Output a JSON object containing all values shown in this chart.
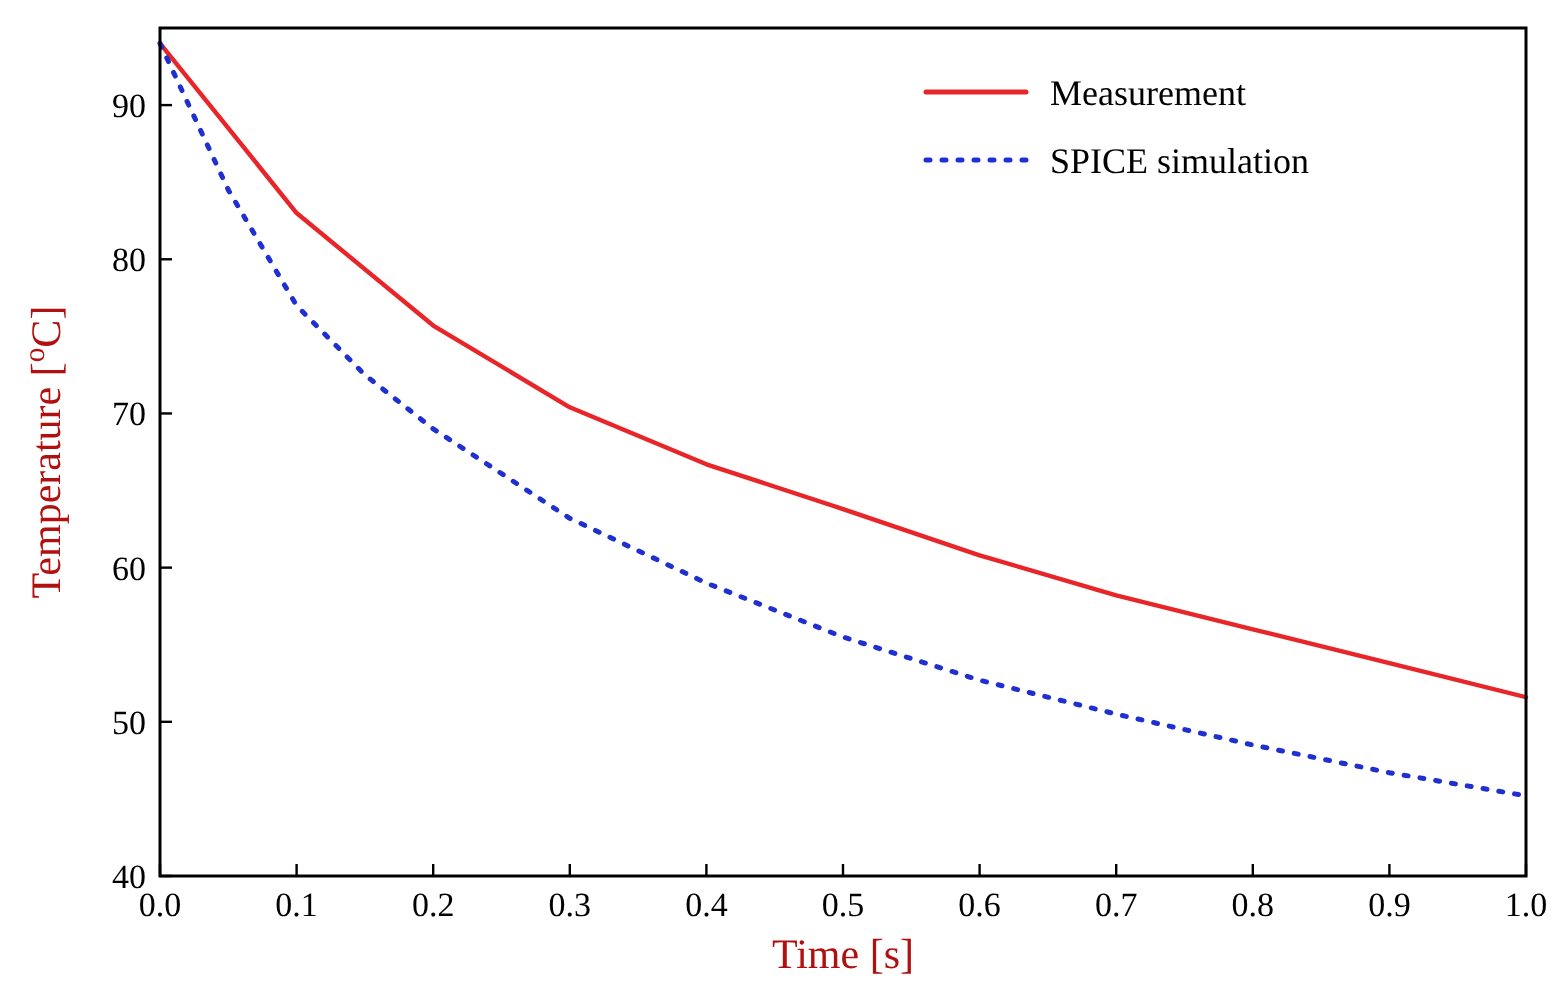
{
  "chart_data": {
    "type": "line",
    "xlabel": "Time [s]",
    "ylabel": "Temperature [$^{o}$C]",
    "xlim": [
      0,
      1
    ],
    "xticks": [
      {
        "value": 0,
        "label": "0.0"
      },
      {
        "value": 0.1,
        "label": "0.1"
      },
      {
        "value": 0.2,
        "label": "0.2"
      },
      {
        "value": 0.3,
        "label": "0.3"
      },
      {
        "value": 0.4,
        "label": "0.4"
      },
      {
        "value": 0.5,
        "label": "0.5"
      },
      {
        "value": 0.6,
        "label": "0.6"
      },
      {
        "value": 0.7,
        "label": "0.7"
      },
      {
        "value": 0.8,
        "label": "0.8"
      },
      {
        "value": 0.9,
        "label": "0.9"
      },
      {
        "value": 1,
        "label": "1.0"
      }
    ],
    "ylim": [
      40,
      95
    ],
    "yticks": [
      40,
      50,
      60,
      70,
      80,
      90
    ],
    "grid": false,
    "legend": "top right",
    "series": [
      {
        "name": "Measurement",
        "color": "#e8262a",
        "line_style": "solid",
        "x": [
          0,
          0.1,
          0.2,
          0.3,
          0.4,
          0.5,
          0.6,
          0.7,
          0.8,
          0.9,
          1
        ],
        "values": [
          94,
          83,
          75.7,
          70.4,
          66.7,
          63.8,
          60.8,
          58.2,
          56,
          53.8,
          51.6
        ]
      },
      {
        "name": "SPICE simulation",
        "color": "#2030d0",
        "line_style": "dotted",
        "x": [
          0,
          0.05,
          0.1,
          0.15,
          0.2,
          0.3,
          0.4,
          0.5,
          0.6,
          0.7,
          0.8,
          0.9,
          1
        ],
        "values": [
          94,
          84.5,
          77,
          72.5,
          69,
          63.2,
          59,
          55.5,
          52.7,
          50.5,
          48.5,
          46.7,
          45.2
        ]
      }
    ]
  }
}
